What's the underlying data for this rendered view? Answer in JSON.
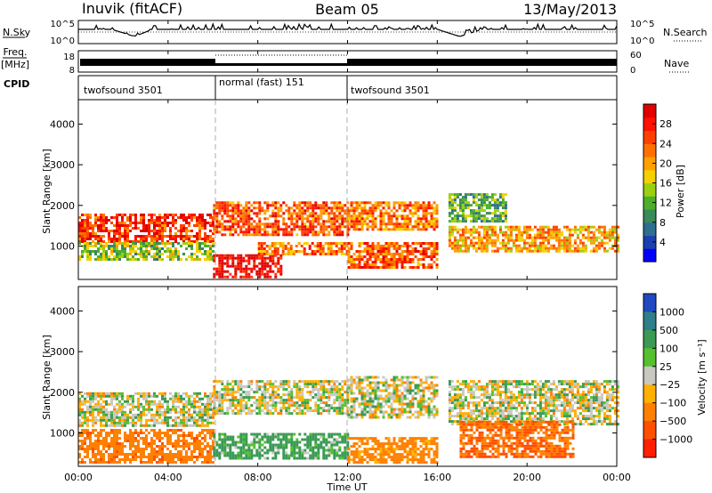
{
  "header": {
    "station": "Inuvik (fitACF)",
    "beam": "Beam 05",
    "date": "13/May/2013"
  },
  "top_panels": {
    "nsky_label": "N.Sky",
    "nsky_ticks": [
      "10^5",
      "10^0"
    ],
    "nsearch_label": "N.Search",
    "freq_label": [
      "Freq.",
      "[MHz]"
    ],
    "freq_ticks": [
      "18",
      "8"
    ],
    "nave_label": "Nave",
    "nave_ticks": [
      "60",
      "0"
    ],
    "cpid_label": "CPID"
  },
  "cpid_segments": [
    {
      "label": "twofsound 3501",
      "start_hour": 0,
      "end_hour": 6
    },
    {
      "label": "normal (fast) 151",
      "start_hour": 6,
      "end_hour": 12
    },
    {
      "label": "twofsound 3501",
      "start_hour": 12,
      "end_hour": 24
    }
  ],
  "axes": {
    "xlabel": "Time UT",
    "x_ticks": [
      "00:00",
      "04:00",
      "08:00",
      "12:00",
      "16:00",
      "20:00",
      "00:00"
    ],
    "ylabel": "Slant Range [km]",
    "y_ticks": [
      "1000",
      "2000",
      "3000",
      "4000"
    ]
  },
  "colorbars": {
    "power": {
      "label": "Power [dB]",
      "ticks": [
        "4",
        "8",
        "12",
        "16",
        "20",
        "24",
        "28"
      ],
      "colors": [
        "#0000ff",
        "#1a3fb0",
        "#2e6e8e",
        "#3a8a5a",
        "#4caf2a",
        "#9bd010",
        "#f5d000",
        "#ffa000",
        "#ff7000",
        "#ff4000",
        "#ff1000",
        "#e00000"
      ]
    },
    "velocity": {
      "label": "Velocity [m s⁻¹]",
      "ticks": [
        "1000",
        "500",
        "100",
        "25",
        "−25",
        "−100",
        "−500",
        "−1000"
      ],
      "colors": [
        "#2048c0",
        "#2f7e8a",
        "#3a9a55",
        "#55c030",
        "#c8c8c0",
        "#ffb000",
        "#ff8000",
        "#ff5000",
        "#ff2000"
      ]
    }
  },
  "chart_data": [
    {
      "type": "heatmap",
      "title": "Power",
      "xlabel": "Time UT",
      "ylabel": "Slant Range [km]",
      "xlim_hours": [
        0,
        24
      ],
      "ylim_km": [
        180,
        4600
      ],
      "value_unit": "dB",
      "bands": [
        {
          "t0": 0,
          "t1": 6,
          "r0": 1100,
          "r1": 1800,
          "value": 26
        },
        {
          "t0": 0,
          "t1": 6,
          "r0": 700,
          "r1": 1100,
          "value": 14
        },
        {
          "t0": 6,
          "t1": 12,
          "r0": 1300,
          "r1": 2100,
          "value": 24
        },
        {
          "t0": 6,
          "t1": 9,
          "r0": 250,
          "r1": 800,
          "value": 30
        },
        {
          "t0": 8,
          "t1": 12,
          "r0": 800,
          "r1": 1100,
          "value": 22
        },
        {
          "t0": 12,
          "t1": 16,
          "r0": 1400,
          "r1": 2100,
          "value": 22
        },
        {
          "t0": 12,
          "t1": 16,
          "r0": 500,
          "r1": 1100,
          "value": 24
        },
        {
          "t0": 16.5,
          "t1": 24,
          "r0": 900,
          "r1": 1500,
          "value": 20
        },
        {
          "t0": 16.5,
          "t1": 19,
          "r0": 1600,
          "r1": 2300,
          "value": 12
        }
      ]
    },
    {
      "type": "heatmap",
      "title": "Velocity",
      "xlabel": "Time UT",
      "ylabel": "Slant Range [km]",
      "xlim_hours": [
        0,
        24
      ],
      "ylim_km": [
        180,
        4600
      ],
      "value_unit": "m s-1",
      "bands": [
        {
          "t0": 0,
          "t1": 6,
          "r0": 1200,
          "r1": 2000,
          "value": 0
        },
        {
          "t0": 0,
          "t1": 6,
          "r0": 300,
          "r1": 1100,
          "value": -300
        },
        {
          "t0": 6,
          "t1": 12,
          "r0": 1500,
          "r1": 2300,
          "value": 0
        },
        {
          "t0": 6,
          "t1": 12,
          "r0": 400,
          "r1": 1000,
          "value": 150
        },
        {
          "t0": 12,
          "t1": 16,
          "r0": 1400,
          "r1": 2400,
          "value": 0
        },
        {
          "t0": 12,
          "t1": 16,
          "r0": 300,
          "r1": 900,
          "value": -200
        },
        {
          "t0": 16.5,
          "t1": 24,
          "r0": 1200,
          "r1": 2300,
          "value": 0
        },
        {
          "t0": 17,
          "t1": 22,
          "r0": 400,
          "r1": 1300,
          "value": -400
        }
      ]
    }
  ]
}
